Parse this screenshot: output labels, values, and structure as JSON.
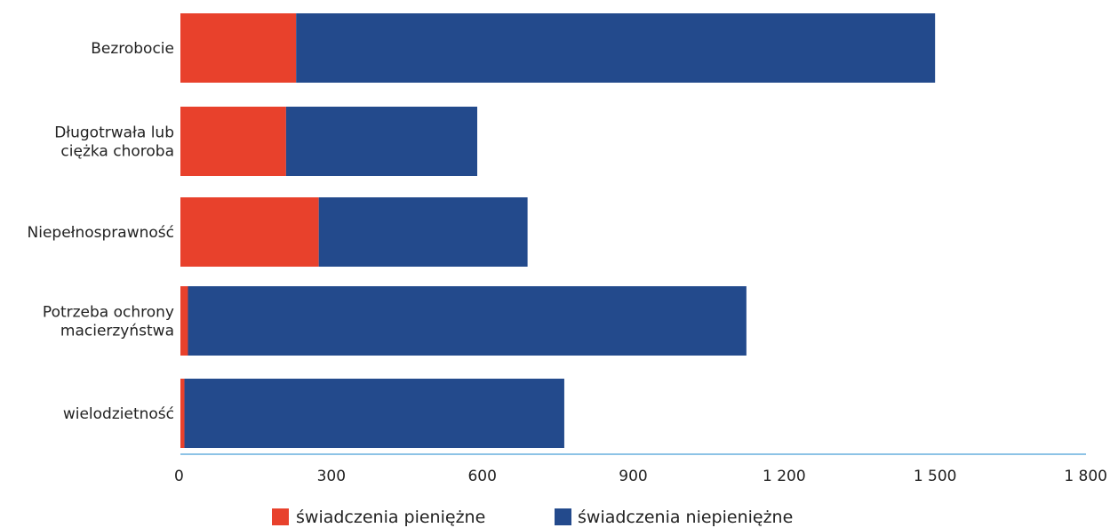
{
  "chart_data": {
    "type": "bar",
    "orientation": "horizontal",
    "stacked": true,
    "categories": [
      [
        "Bezrobocie"
      ],
      [
        "Długotrwała lub",
        "ciężka choroba"
      ],
      [
        "Niepełnosprawność"
      ],
      [
        "Potrzeba ochrony",
        "macierzyństwa"
      ],
      [
        "wielodzietność"
      ]
    ],
    "series": [
      {
        "name": "świadczenia pieniężne",
        "color": "#e8412c",
        "values": [
          230,
          210,
          275,
          15,
          8
        ]
      },
      {
        "name": "świadczenia niepieniężne",
        "color": "#234a8c",
        "values": [
          1270,
          380,
          415,
          1110,
          755
        ]
      }
    ],
    "x_ticks": [
      "0",
      "300",
      "600",
      "900",
      "1 200",
      "1 500",
      "1 800"
    ],
    "xlim": [
      0,
      1800
    ],
    "axis_color": "#8dc3e6",
    "grid": false,
    "legend_position": "bottom"
  }
}
